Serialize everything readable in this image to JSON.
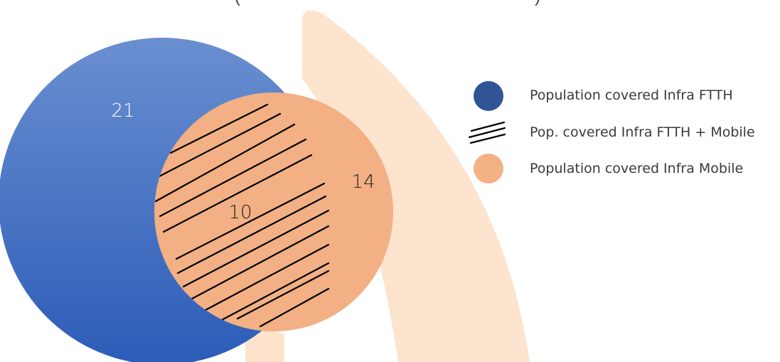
{
  "title_fragment": {
    "open": "(",
    "close": ")"
  },
  "venn": {
    "ftth_only": "21",
    "overlap": "10",
    "mobile_only": "14"
  },
  "legend": [
    {
      "label": "Population covered Infra FTTH",
      "marker": "filled-circle",
      "color": "#2f5597"
    },
    {
      "label": "Pop. covered Infra FTTH + Mobile",
      "marker": "hatch-lines",
      "color": "#000000"
    },
    {
      "label": "Population covered Infra Mobile",
      "marker": "filled-circle",
      "color": "#f4b183"
    }
  ],
  "colors": {
    "ftth_top": "#6a8fd0",
    "ftth_bottom": "#2c5cb8",
    "mobile": "#f2b084",
    "background_shape": "#fde3cc"
  }
}
